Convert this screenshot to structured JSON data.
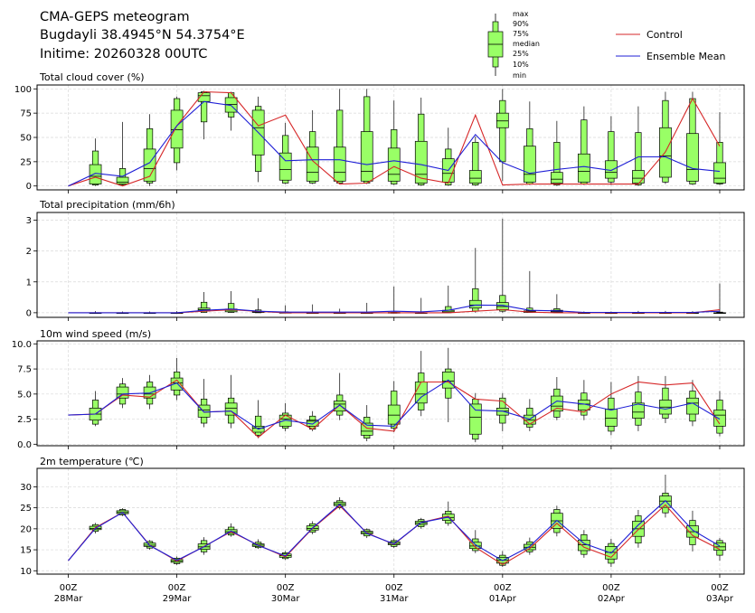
{
  "header": {
    "title": "CMA-GEPS meteogram",
    "location": "Bugdayli 38.4945°N 54.3754°E",
    "initime": "Initime: 20260328 00UTC"
  },
  "legend": {
    "box_labels": [
      "max",
      "90%",
      "75%",
      "median",
      "25%",
      "10%",
      "min"
    ],
    "control_label": "Control",
    "mean_label": "Ensemble Mean",
    "control_color": "#d62728",
    "mean_color": "#1f1fd6",
    "box_fill": "#99ff66"
  },
  "x_axis": {
    "ticks": [
      {
        "top": "00Z",
        "bottom": "28Mar",
        "hour": 0
      },
      {
        "top": "00Z",
        "bottom": "29Mar",
        "hour": 24
      },
      {
        "top": "00Z",
        "bottom": "30Mar",
        "hour": 48
      },
      {
        "top": "00Z",
        "bottom": "31Mar",
        "hour": 72
      },
      {
        "top": "00Z",
        "bottom": "01Apr",
        "hour": 96
      },
      {
        "top": "00Z",
        "bottom": "02Apr",
        "hour": 120
      },
      {
        "top": "00Z",
        "bottom": "03Apr",
        "hour": 144
      }
    ]
  },
  "chart_data": [
    {
      "type": "box",
      "title": "Total cloud cover (%)",
      "ylim": [
        -4,
        104
      ],
      "yticks": [
        0,
        25,
        50,
        75,
        100
      ],
      "x_hours": [
        0,
        6,
        12,
        18,
        24,
        30,
        36,
        42,
        48,
        54,
        60,
        66,
        72,
        78,
        84,
        90,
        96,
        102,
        108,
        114,
        120,
        126,
        132,
        138,
        144
      ],
      "boxes": [
        null,
        [
          0,
          1,
          2,
          10,
          22,
          36,
          49
        ],
        [
          0,
          1,
          2,
          4,
          9,
          18,
          66
        ],
        [
          0,
          3,
          5,
          18,
          38,
          59,
          74
        ],
        [
          16,
          24,
          39,
          58,
          78,
          90,
          92
        ],
        [
          48,
          66,
          87,
          93,
          96,
          97,
          98
        ],
        [
          57,
          71,
          76,
          84,
          91,
          96,
          97
        ],
        [
          4,
          15,
          32,
          60,
          78,
          82,
          92
        ],
        [
          2,
          3,
          6,
          17,
          34,
          52,
          65
        ],
        [
          2,
          3,
          5,
          14,
          40,
          56,
          78
        ],
        [
          2,
          3,
          5,
          14,
          40,
          78,
          100
        ],
        [
          2,
          3,
          5,
          15,
          56,
          92,
          100
        ],
        [
          1,
          2,
          5,
          12,
          39,
          58,
          88
        ],
        [
          0,
          1,
          3,
          12,
          46,
          74,
          91
        ],
        [
          0,
          1,
          4,
          13,
          28,
          38,
          60
        ],
        [
          0,
          1,
          3,
          8,
          16,
          45,
          51
        ],
        [
          5,
          25,
          60,
          67,
          75,
          88,
          100
        ],
        [
          1,
          2,
          4,
          12,
          41,
          59,
          87
        ],
        [
          0,
          1,
          3,
          7,
          14,
          45,
          67
        ],
        [
          1,
          2,
          4,
          15,
          33,
          68,
          82
        ],
        [
          1,
          4,
          8,
          14,
          26,
          56,
          72
        ],
        [
          0,
          1,
          3,
          8,
          16,
          55,
          82
        ],
        [
          2,
          4,
          9,
          31,
          60,
          88,
          97
        ],
        [
          1,
          2,
          5,
          17,
          54,
          90,
          97
        ],
        [
          1,
          2,
          3,
          8,
          24,
          45,
          76
        ]
      ],
      "control": [
        0,
        9,
        0,
        10,
        62,
        97,
        96,
        62,
        73,
        26,
        2,
        3,
        20,
        8,
        3,
        73,
        1,
        2,
        2,
        2,
        2,
        2,
        35,
        90,
        41
      ],
      "mean": [
        0,
        13,
        10,
        24,
        62,
        87,
        83,
        55,
        26,
        27,
        27,
        22,
        26,
        22,
        16,
        53,
        24,
        13,
        17,
        20,
        16,
        30,
        30,
        18,
        15
      ]
    },
    {
      "type": "box",
      "title": "Total precipitation (mm/6h)",
      "ylim": [
        -0.15,
        3.25
      ],
      "yticks": [
        0,
        1,
        2,
        3
      ],
      "x_hours": [
        0,
        6,
        12,
        18,
        24,
        30,
        36,
        42,
        48,
        54,
        60,
        66,
        72,
        78,
        84,
        90,
        96,
        102,
        108,
        114,
        120,
        126,
        132,
        138,
        144
      ],
      "boxes": [
        null,
        [
          0,
          0,
          0,
          0,
          0,
          0,
          0.05
        ],
        [
          0,
          0,
          0,
          0,
          0,
          0,
          0.04
        ],
        [
          0,
          0,
          0,
          0,
          0,
          0,
          0.04
        ],
        [
          0,
          0,
          0,
          0,
          0,
          0,
          0.05
        ],
        [
          0,
          0.01,
          0.05,
          0.1,
          0.15,
          0.34,
          0.67
        ],
        [
          0,
          0.01,
          0.03,
          0.08,
          0.12,
          0.3,
          0.7
        ],
        [
          0,
          0,
          0.01,
          0.02,
          0.04,
          0.09,
          0.47
        ],
        [
          0,
          0,
          0,
          0,
          0.01,
          0.03,
          0.24
        ],
        [
          0,
          0,
          0,
          0,
          0,
          0.01,
          0.27
        ],
        [
          0,
          0,
          0,
          0,
          0,
          0,
          0.13
        ],
        [
          0,
          0,
          0,
          0,
          0,
          0,
          0.32
        ],
        [
          0,
          0,
          0,
          0,
          0.01,
          0.01,
          0.85
        ],
        [
          0,
          0,
          0,
          0,
          0,
          0.01,
          0.48
        ],
        [
          0,
          0,
          0.01,
          0.03,
          0.08,
          0.2,
          0.88
        ],
        [
          0,
          0.05,
          0.15,
          0.25,
          0.4,
          0.78,
          2.1
        ],
        [
          0,
          0.05,
          0.1,
          0.2,
          0.33,
          0.56,
          3.05
        ],
        [
          0,
          0.01,
          0.01,
          0.04,
          0.06,
          0.15,
          1.35
        ],
        [
          0,
          0,
          0.02,
          0.04,
          0.08,
          0.13,
          0.6
        ],
        [
          0,
          0,
          0,
          0,
          0,
          0,
          0.04
        ],
        [
          0,
          0,
          0,
          0,
          0,
          0,
          0.04
        ],
        [
          0,
          0,
          0,
          0,
          0,
          0.01,
          0.06
        ],
        [
          0,
          0,
          0,
          0,
          0,
          0.01,
          0.06
        ],
        [
          0,
          0,
          0,
          0,
          0,
          0,
          0.05
        ],
        [
          0,
          0,
          0,
          0,
          0,
          0.02,
          0.95
        ]
      ],
      "control": [
        0,
        0,
        0,
        0,
        0,
        0.05,
        0.1,
        0.04,
        0,
        0,
        0,
        0,
        0,
        0,
        0,
        0.05,
        0.1,
        0.02,
        0,
        0,
        0,
        0,
        0,
        0,
        0.1
      ],
      "mean": [
        0,
        0,
        0,
        0,
        0,
        0.08,
        0.12,
        0.05,
        0.02,
        0.02,
        0.02,
        0.02,
        0.05,
        0.03,
        0.08,
        0.25,
        0.24,
        0.08,
        0.06,
        0.01,
        0.01,
        0.01,
        0.01,
        0.01,
        0.05
      ]
    },
    {
      "type": "box",
      "title": "10m wind speed (m/s)",
      "ylim": [
        -0.15,
        10.3
      ],
      "yticks": [
        0.0,
        2.5,
        5.0,
        7.5,
        10.0
      ],
      "x_hours": [
        0,
        6,
        12,
        18,
        24,
        30,
        36,
        42,
        48,
        54,
        60,
        66,
        72,
        78,
        84,
        90,
        96,
        102,
        108,
        114,
        120,
        126,
        132,
        138,
        144
      ],
      "boxes": [
        null,
        [
          1.8,
          2.0,
          2.4,
          3.0,
          3.6,
          4.4,
          5.3
        ],
        [
          3.6,
          4.0,
          4.6,
          5.0,
          5.7,
          6.0,
          6.6
        ],
        [
          3.5,
          4.0,
          4.6,
          5.0,
          5.7,
          6.2,
          6.9
        ],
        [
          4.4,
          4.9,
          5.4,
          6.1,
          6.6,
          7.2,
          8.6
        ],
        [
          1.7,
          2.1,
          2.7,
          3.4,
          3.9,
          4.5,
          6.5
        ],
        [
          1.6,
          2.1,
          2.9,
          3.6,
          4.1,
          4.6,
          6.9
        ],
        [
          0.6,
          0.9,
          1.2,
          1.6,
          1.8,
          2.8,
          4.4
        ],
        [
          1.3,
          1.6,
          1.8,
          2.5,
          2.9,
          3.1,
          4.1
        ],
        [
          1.3,
          1.5,
          1.8,
          2.3,
          2.4,
          2.8,
          3.3
        ],
        [
          2.4,
          2.9,
          3.3,
          4.0,
          4.3,
          4.9,
          7.1
        ],
        [
          0.3,
          0.6,
          0.9,
          1.3,
          2.1,
          2.7,
          3.9
        ],
        [
          1.2,
          1.6,
          2.0,
          2.9,
          3.9,
          5.3,
          6.3
        ],
        [
          2.8,
          3.4,
          4.1,
          5.0,
          6.2,
          7.1,
          9.3
        ],
        [
          2.2,
          4.6,
          5.6,
          6.3,
          7.2,
          7.5,
          9.6
        ],
        [
          0.2,
          0.5,
          1.0,
          2.7,
          4.0,
          4.5,
          5.1
        ],
        [
          1.3,
          2.1,
          2.9,
          3.3,
          3.6,
          4.6,
          5.1
        ],
        [
          1.3,
          1.7,
          2.0,
          2.4,
          2.9,
          3.6,
          4.5
        ],
        [
          2.4,
          2.7,
          3.3,
          3.8,
          4.8,
          5.5,
          6.7
        ],
        [
          2.4,
          2.9,
          3.4,
          4.0,
          4.4,
          5.1,
          6.4
        ],
        [
          0.9,
          1.3,
          1.8,
          2.6,
          3.5,
          4.6,
          6.2
        ],
        [
          1.3,
          1.9,
          2.6,
          3.2,
          4.1,
          5.2,
          6.8
        ],
        [
          2.1,
          2.6,
          3.0,
          3.7,
          4.4,
          5.6,
          6.8
        ],
        [
          1.8,
          2.3,
          3.0,
          4.1,
          4.6,
          5.3,
          6.4
        ],
        [
          0.8,
          1.1,
          1.8,
          2.9,
          3.4,
          4.4,
          5.3
        ]
      ],
      "control": [
        2.9,
        3.0,
        4.9,
        4.7,
        6.4,
        3.2,
        3.3,
        0.7,
        2.9,
        1.5,
        3.9,
        1.6,
        1.3,
        6.2,
        6.2,
        4.5,
        4.3,
        2.0,
        3.6,
        3.2,
        5.0,
        6.2,
        5.9,
        6.1,
        2.0
      ],
      "mean": [
        2.9,
        3.0,
        5.0,
        5.1,
        6.1,
        3.2,
        3.3,
        1.5,
        2.4,
        2.0,
        3.9,
        1.9,
        1.8,
        4.7,
        6.4,
        3.4,
        3.3,
        2.5,
        4.3,
        4.0,
        3.4,
        4.0,
        3.5,
        4.1,
        2.5
      ]
    },
    {
      "type": "box",
      "title": "2m temperature (℃)",
      "ylim": [
        9.2,
        34.4
      ],
      "yticks": [
        10,
        15,
        20,
        25,
        30
      ],
      "x_hours": [
        0,
        6,
        12,
        18,
        24,
        30,
        36,
        42,
        48,
        54,
        60,
        66,
        72,
        78,
        84,
        90,
        96,
        102,
        108,
        114,
        120,
        126,
        132,
        138,
        144
      ],
      "boxes": [
        null,
        [
          18.9,
          19.4,
          19.8,
          20.1,
          20.6,
          21.0,
          21.4
        ],
        [
          23.0,
          23.3,
          23.6,
          23.9,
          24.3,
          24.6,
          24.9
        ],
        [
          15.0,
          15.4,
          15.8,
          16.1,
          16.6,
          17.0,
          17.3
        ],
        [
          11.4,
          11.7,
          12.0,
          12.3,
          12.7,
          13.0,
          13.4
        ],
        [
          13.8,
          14.5,
          15.1,
          15.7,
          16.4,
          17.2,
          18.0
        ],
        [
          18.1,
          18.5,
          18.9,
          19.3,
          19.8,
          20.4,
          21.3
        ],
        [
          15.2,
          15.5,
          15.8,
          16.1,
          16.4,
          16.8,
          17.5
        ],
        [
          12.6,
          12.9,
          13.2,
          13.6,
          14.0,
          14.3,
          14.7
        ],
        [
          18.7,
          19.2,
          19.7,
          20.1,
          20.7,
          21.2,
          21.8
        ],
        [
          24.6,
          25.0,
          25.5,
          25.9,
          26.3,
          26.7,
          27.5
        ],
        [
          17.8,
          18.3,
          18.8,
          19.1,
          19.4,
          19.8,
          20.1
        ],
        [
          15.4,
          15.8,
          16.2,
          16.5,
          16.9,
          17.2,
          17.7
        ],
        [
          20.0,
          20.5,
          21.0,
          21.4,
          21.8,
          22.2,
          22.6
        ],
        [
          20.7,
          21.3,
          22.0,
          22.7,
          23.5,
          24.2,
          26.5
        ],
        [
          14.2,
          14.8,
          15.3,
          15.9,
          16.8,
          17.6,
          19.7
        ],
        [
          10.9,
          11.3,
          11.8,
          12.5,
          13.2,
          13.7,
          14.7
        ],
        [
          13.8,
          14.5,
          15.0,
          15.6,
          16.3,
          16.9,
          17.9
        ],
        [
          18.2,
          19.1,
          20.1,
          21.9,
          23.7,
          24.6,
          25.5
        ],
        [
          13.1,
          13.9,
          14.8,
          16.2,
          17.3,
          18.6,
          19.7
        ],
        [
          10.9,
          11.8,
          12.8,
          14.4,
          15.8,
          16.5,
          17.6
        ],
        [
          15.5,
          16.6,
          18.2,
          20.0,
          21.8,
          23.1,
          24.5
        ],
        [
          22.7,
          23.8,
          25.1,
          26.6,
          27.8,
          28.5,
          32.9
        ],
        [
          14.6,
          16.2,
          18.0,
          19.3,
          20.7,
          22.0,
          24.3
        ],
        [
          12.4,
          13.7,
          14.9,
          15.7,
          16.6,
          17.2,
          17.8
        ]
      ],
      "control": [
        12.4,
        20.3,
        23.9,
        16.1,
        12.3,
        15.8,
        19.3,
        16.1,
        13.3,
        20.1,
        25.5,
        19.0,
        16.3,
        21.5,
        23.0,
        15.6,
        11.5,
        15.3,
        21.3,
        15.6,
        13.2,
        19.8,
        25.7,
        18.4,
        15.1
      ],
      "mean": [
        12.4,
        20.1,
        23.9,
        16.0,
        12.5,
        15.7,
        19.5,
        16.0,
        13.5,
        20.2,
        25.8,
        18.9,
        16.4,
        21.5,
        22.8,
        16.2,
        12.4,
        15.8,
        22.0,
        16.5,
        14.2,
        20.9,
        26.7,
        19.7,
        15.9
      ]
    }
  ]
}
